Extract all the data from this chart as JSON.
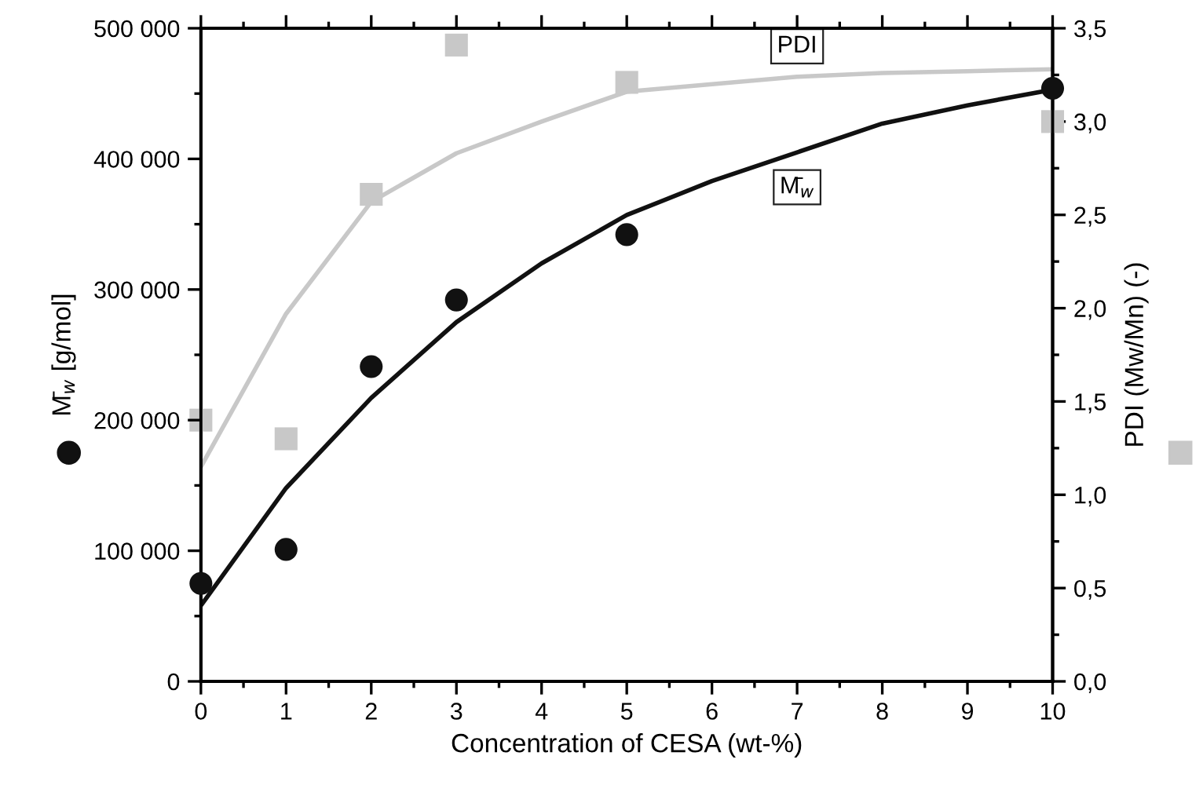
{
  "chart_data": {
    "type": "scatter",
    "xlabel": "Concentration of CESA (wt-%)",
    "ylabel": "M̄$_{w}$ [g/mol]",
    "y2label": "PDI (Mw/Mn) (-)",
    "xlim": [
      0,
      10
    ],
    "xticks": [
      0,
      1,
      2,
      3,
      4,
      5,
      6,
      7,
      8,
      9,
      10
    ],
    "ylim": [
      0,
      500000
    ],
    "yticks": [
      0,
      {
        "value": 100000,
        "label": "100 000"
      },
      {
        "value": 200000,
        "label": "200 000"
      },
      {
        "value": 300000,
        "label": "300 000"
      },
      {
        "value": 400000,
        "label": "400 000"
      },
      {
        "value": 500000,
        "label": "500 000"
      }
    ],
    "y2lim": [
      0,
      3.5
    ],
    "y2ticks": [
      {
        "value": 0,
        "label": "0,0"
      },
      {
        "value": 0.5,
        "label": "0,5"
      },
      {
        "value": 1,
        "label": "1,0"
      },
      {
        "value": 1.5,
        "label": "1,5"
      },
      {
        "value": 2,
        "label": "2,0"
      },
      {
        "value": 2.5,
        "label": "2,5"
      },
      {
        "value": 3,
        "label": "3,0"
      },
      {
        "value": 3.5,
        "label": "3,5"
      }
    ],
    "grid": false,
    "legend": false,
    "series": [
      {
        "type": "line",
        "name": "PDI",
        "axis": "y2",
        "color": "#c8c8c8",
        "marker": "none",
        "line_style": "solid",
        "x": [
          0,
          1,
          2,
          3,
          4,
          5,
          6,
          7,
          8,
          9,
          10
        ],
        "values": [
          1.15,
          1.97,
          2.57,
          2.83,
          3.0,
          3.16,
          3.2,
          3.24,
          3.26,
          3.27,
          3.28
        ]
      },
      {
        "type": "line",
        "name": "M̄$_{w}$",
        "color": "#111111",
        "marker": "none",
        "line_style": "solid",
        "x": [
          0,
          1,
          2,
          3,
          4,
          5,
          6,
          7,
          8,
          9,
          10
        ],
        "values": [
          58000,
          148000,
          217000,
          275000,
          320000,
          357000,
          383000,
          405000,
          427000,
          441000,
          453000
        ]
      },
      {
        "axis": "y2",
        "color": "#c8c8c8",
        "marker": "square",
        "x": [
          0,
          1,
          2,
          3,
          5,
          10
        ],
        "values": [
          1.4,
          1.3,
          2.61,
          3.41,
          3.21,
          3.0
        ]
      },
      {
        "color": "#111111",
        "marker": "circle",
        "x": [
          0,
          1,
          2,
          3,
          5,
          10
        ],
        "values": [
          75000,
          101000,
          241000,
          292000,
          342000,
          454000
        ]
      }
    ]
  }
}
